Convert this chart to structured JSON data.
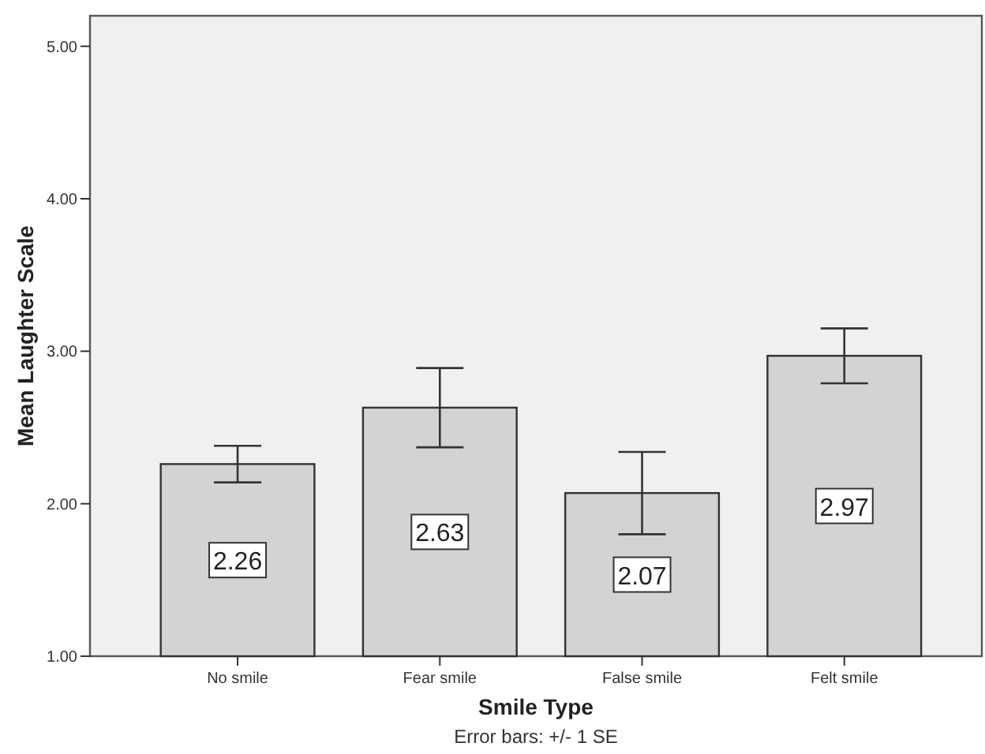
{
  "chart_data": {
    "type": "bar",
    "xlabel": "Smile Type",
    "ylabel": "Mean Laughter Scale",
    "categories": [
      "No smile",
      "Fear smile",
      "False smile",
      "Felt smile"
    ],
    "values": [
      2.26,
      2.63,
      2.07,
      2.97
    ],
    "errors": [
      0.12,
      0.26,
      0.27,
      0.18
    ],
    "color": "#d3d3d3",
    "data_labels": true,
    "ylim": [
      1,
      5.2
    ],
    "yticks": [
      {
        "value": 1,
        "label": "1.00"
      },
      {
        "value": 2,
        "label": "2.00"
      },
      {
        "value": 3,
        "label": "3.00"
      },
      {
        "value": 4,
        "label": "4.00"
      },
      {
        "value": 5,
        "label": "5.00"
      }
    ],
    "annotations": [
      "Error bars: +/- 1 SE"
    ]
  }
}
